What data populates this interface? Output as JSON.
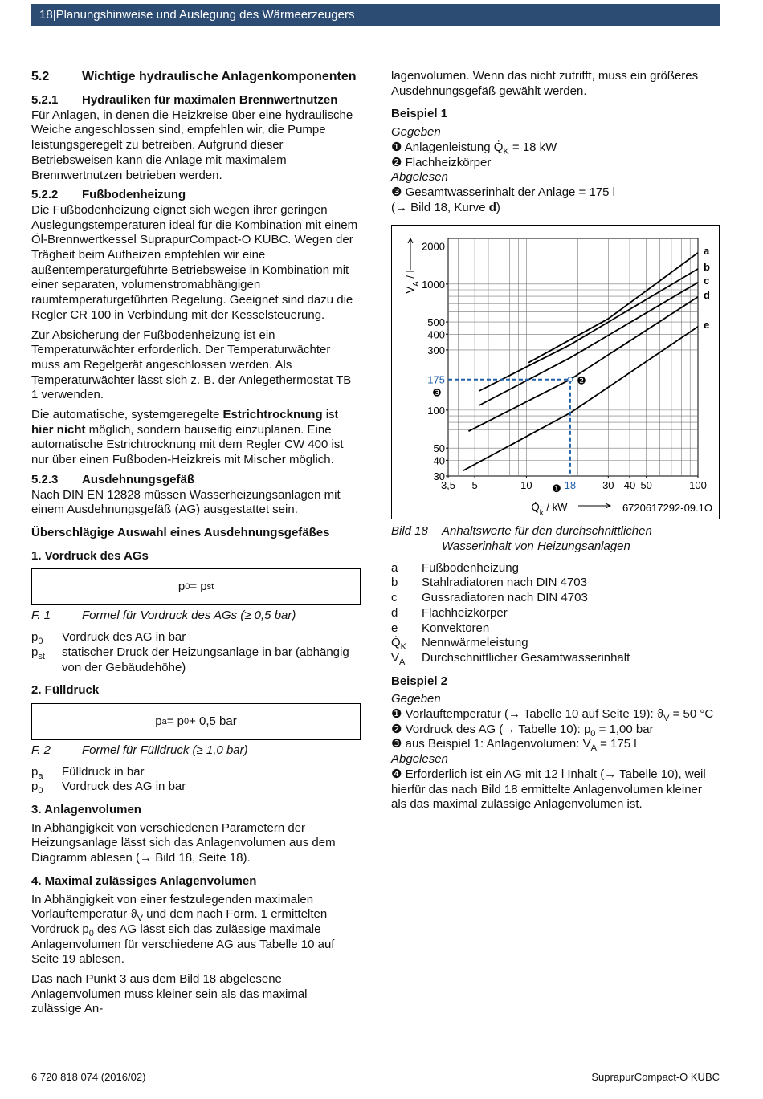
{
  "header": {
    "page": "18",
    "title": "Planungshinweise und Auslegung des Wärmeerzeugers"
  },
  "left": [
    {
      "type": "h2",
      "num": "5.2",
      "text": "Wichtige hydraulische Anlagenkomponenten"
    },
    {
      "type": "h3",
      "num": "5.2.1",
      "text": "Hydrauliken für maximalen Brennwertnutzen"
    },
    {
      "type": "p",
      "text": "Für Anlagen, in denen die Heizkreise über eine hydraulische Weiche angeschlossen sind, empfehlen wir, die Pumpe leistungsgeregelt zu betreiben. Aufgrund dieser Betriebsweisen kann die Anlage mit maximalem Brennwertnutzen betrieben werden."
    },
    {
      "type": "h3",
      "num": "5.2.2",
      "text": "Fußbodenheizung"
    },
    {
      "type": "p",
      "text": "Die Fußbodenheizung eignet sich wegen ihrer geringen Auslegungstemperaturen ideal für die Kombination mit einem Öl-Brennwertkessel SuprapurCompact-O KUBC. Wegen der Trägheit beim Aufheizen empfehlen wir eine außentemperaturgeführte Betriebsweise in Kombination mit einer separaten, volumenstromabhängigen raumtemperaturgeführten Regelung. Geeignet sind dazu die Regler CR 100 in Verbindung mit der Kesselsteuerung."
    },
    {
      "type": "p",
      "text": "Zur Absicherung der Fußbodenheizung ist ein Temperaturwächter erforderlich. Der Temperaturwächter muss am Regelgerät angeschlossen werden. Als Temperaturwächter lässt sich z. B. der Anlegethermostat TB 1 verwenden."
    },
    {
      "type": "p",
      "text": [
        "Die automatische, systemgeregelte ",
        {
          "b": "Estrichtrocknung"
        },
        " ist ",
        {
          "b": "hier nicht"
        },
        " möglich, sondern bauseitig einzuplanen. Eine automatische Estrichtrocknung mit dem Regler CW 400 ist nur über einen Fußboden-Heizkreis mit Mischer möglich."
      ]
    },
    {
      "type": "h3",
      "num": "5.2.3",
      "text": "Ausdehnungsgefäß"
    },
    {
      "type": "p",
      "text": "Nach DIN EN 12828 müssen Wasserheizungsanlagen mit einem Ausdehnungsgefäß (AG) ausgestattet sein."
    },
    {
      "type": "strong",
      "text": "Überschlägige Auswahl eines Ausdehnungsgefäßes"
    },
    {
      "type": "strong",
      "text": "1. Vordruck des AGs"
    },
    {
      "type": "formula",
      "text": [
        "p",
        {
          "sub": "0"
        },
        " = p",
        {
          "sub": "st"
        }
      ]
    },
    {
      "type": "caption",
      "label": "F. 1",
      "text": "Formel für Vordruck des AGs (≥ 0,5 bar)"
    },
    {
      "type": "defs",
      "items": [
        {
          "sym": [
            "p",
            {
              "sub": "0"
            }
          ],
          "text": "Vordruck des AG in bar"
        },
        {
          "sym": [
            "p",
            {
              "sub": "st"
            }
          ],
          "text": "statischer Druck der Heizungsanlage in bar (abhängig von der Gebäudehöhe)"
        }
      ]
    },
    {
      "type": "strong",
      "text": "2. Fülldruck"
    },
    {
      "type": "formula",
      "text": [
        "p",
        {
          "sub": "a"
        },
        " = p",
        {
          "sub": "0"
        },
        " + 0,5 bar"
      ]
    },
    {
      "type": "caption",
      "label": "F. 2",
      "text": "Formel für Fülldruck (≥ 1,0 bar)"
    },
    {
      "type": "defs",
      "items": [
        {
          "sym": [
            "p",
            {
              "sub": "a"
            }
          ],
          "text": "Fülldruck in bar"
        },
        {
          "sym": [
            "p",
            {
              "sub": "0"
            }
          ],
          "text": "Vordruck des AG in bar"
        }
      ]
    },
    {
      "type": "strong",
      "text": "3. Anlagenvolumen"
    },
    {
      "type": "p",
      "text": "In Abhängigkeit von verschiedenen Parametern der Heizungsanlage lässt sich das Anlagenvolumen aus dem Diagramm ablesen (→ Bild 18, Seite 18)."
    },
    {
      "type": "strong",
      "text": "4. Maximal zulässiges Anlagenvolumen"
    },
    {
      "type": "p",
      "text": [
        "In Abhängigkeit von einer festzulegenden maximalen Vorlauftemperatur ϑ",
        {
          "sub": "V"
        },
        " und dem nach Form. 1 ermittelten Vordruck p",
        {
          "sub": "0"
        },
        " des AG lässt sich das zulässige maximale Anlagenvolumen für verschiedene AG aus Tabelle 10 auf Seite 19 ablesen."
      ]
    },
    {
      "type": "p",
      "text": "Das nach Punkt 3 aus dem Bild 18 abgelesene Anlagenvolumen muss kleiner sein als das maximal zulässige An-"
    }
  ],
  "right": [
    {
      "type": "p",
      "text": "lagenvolumen. Wenn das nicht zutrifft, muss ein größeres Ausdehnungsgefäß gewählt werden."
    },
    {
      "type": "strong",
      "text": "Beispiel 1"
    },
    {
      "type": "em",
      "text": "Gegeben"
    },
    {
      "type": "line",
      "text": [
        "❶ Anlagenleistung Q̇",
        {
          "sub": "K"
        },
        " = 18 kW"
      ]
    },
    {
      "type": "line",
      "text": "❷ Flachheizkörper"
    },
    {
      "type": "em",
      "text": "Abgelesen"
    },
    {
      "type": "line",
      "text": "❸ Gesamtwasserinhalt der Anlage = 175 l"
    },
    {
      "type": "line",
      "text": [
        "(→ Bild 18, Kurve ",
        {
          "b": "d"
        },
        ")"
      ]
    },
    {
      "type": "figure",
      "xlim": [
        3.5,
        100
      ],
      "ylim": [
        30,
        2300
      ],
      "xlog": true,
      "ylog": true,
      "xticks": [
        {
          "value": 3.5,
          "label": "3,5"
        },
        5,
        10,
        30,
        40,
        50,
        100
      ],
      "yticks": [
        30,
        40,
        50,
        100,
        300,
        400,
        500,
        1000,
        2000
      ],
      "xgrid": [
        4,
        5,
        6,
        7,
        8,
        9,
        10,
        20,
        30,
        40,
        50,
        60,
        70,
        80,
        90
      ],
      "ygrid": [
        40,
        50,
        60,
        70,
        80,
        90,
        100,
        200,
        300,
        400,
        500,
        600,
        700,
        800,
        900,
        1000,
        2000
      ],
      "xlabel": [
        "Q̇",
        {
          "sub": "k"
        },
        " / kW"
      ],
      "ylabel": [
        "V",
        {
          "sub": "A"
        },
        " / l"
      ],
      "code": "6720617292-09.1O",
      "series": [
        {
          "name": "a",
          "x": [
            10.3,
            30,
            100
          ],
          "values": [
            238,
            530,
            1770
          ]
        },
        {
          "name": "b",
          "x": [
            5.3,
            18,
            100
          ],
          "values": [
            142,
            330,
            1320
          ]
        },
        {
          "name": "c",
          "x": [
            5.3,
            18,
            100
          ],
          "values": [
            109,
            260,
            1030
          ]
        },
        {
          "name": "d",
          "x": [
            4.6,
            18,
            100
          ],
          "values": [
            68,
            175,
            791
          ]
        },
        {
          "name": "e",
          "x": [
            4.26,
            18,
            100
          ],
          "values": [
            33,
            95,
            459
          ]
        }
      ],
      "line_color": "#000000",
      "reading": {
        "x": 18,
        "y": 175,
        "color": "#1f5fa8",
        "markers": [
          "❶",
          "❷",
          "❸"
        ]
      }
    },
    {
      "type": "caption",
      "label": "Bild 18",
      "text": "Anhaltswerte für den durchschnittlichen Wasserinhalt von Heizungsanlagen"
    },
    {
      "type": "legend",
      "items": [
        {
          "sym": "a",
          "text": "Fußbodenheizung"
        },
        {
          "sym": "b",
          "text": "Stahlradiatoren nach DIN 4703"
        },
        {
          "sym": "c",
          "text": "Gussradiatoren nach DIN 4703"
        },
        {
          "sym": "d",
          "text": "Flachheizkörper"
        },
        {
          "sym": "e",
          "text": "Konvektoren"
        },
        {
          "sym": [
            "Q̇",
            {
              "sub": "K"
            }
          ],
          "text": "Nennwärmeleistung"
        },
        {
          "sym": [
            "V",
            {
              "sub": "A"
            }
          ],
          "text": "Durchschnittlicher Gesamtwasserinhalt"
        }
      ]
    },
    {
      "type": "strong",
      "text": "Beispiel 2"
    },
    {
      "type": "em",
      "text": "Gegeben"
    },
    {
      "type": "line",
      "text": [
        "❶ Vorlauftemperatur (→ Tabelle 10 auf Seite 19): ϑ",
        {
          "sub": "V"
        },
        " = 50 °C"
      ]
    },
    {
      "type": "line",
      "text": [
        "❷ Vordruck des AG (→ Tabelle 10): p",
        {
          "sub": "0"
        },
        " = 1,00 bar"
      ]
    },
    {
      "type": "line",
      "text": [
        "❸ aus Beispiel 1: Anlagenvolumen: V",
        {
          "sub": "A"
        },
        " = 175 l"
      ]
    },
    {
      "type": "em",
      "text": "Abgelesen"
    },
    {
      "type": "p",
      "text": "❹ Erforderlich ist ein AG mit 12 l Inhalt (→ Tabelle 10), weil hierfür das nach Bild 18 ermittelte Anlagenvolumen kleiner als das maximal zulässige Anlagenvolumen ist."
    }
  ],
  "footer": {
    "left": "6 720 818 074 (2016/02)",
    "right": "SuprapurCompact-O KUBC"
  }
}
